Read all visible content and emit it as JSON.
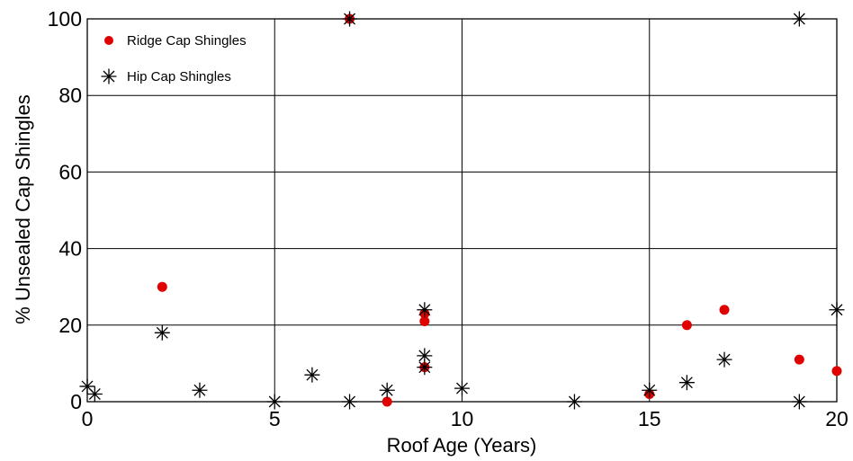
{
  "chart_data": {
    "type": "scatter",
    "xlabel": "Roof Age (Years)",
    "ylabel": "% Unsealed Cap Shingles",
    "xlim": [
      0,
      20
    ],
    "ylim": [
      0,
      100
    ],
    "xticks": [
      0,
      5,
      10,
      15,
      20
    ],
    "yticks": [
      0,
      20,
      40,
      60,
      80,
      100
    ],
    "grid": true,
    "legend_position": "top-left",
    "series": [
      {
        "name": "Ridge Cap Shingles",
        "marker": "circle",
        "color": "#e00000",
        "points": [
          {
            "x": 2,
            "y": 30
          },
          {
            "x": 7,
            "y": 100
          },
          {
            "x": 8,
            "y": 0
          },
          {
            "x": 9,
            "y": 23
          },
          {
            "x": 9,
            "y": 21
          },
          {
            "x": 9,
            "y": 9
          },
          {
            "x": 15,
            "y": 2
          },
          {
            "x": 16,
            "y": 20
          },
          {
            "x": 17,
            "y": 24
          },
          {
            "x": 19,
            "y": 11
          },
          {
            "x": 20,
            "y": 8
          }
        ]
      },
      {
        "name": "Hip Cap Shingles",
        "marker": "asterisk",
        "color": "#000000",
        "points": [
          {
            "x": 0,
            "y": 4
          },
          {
            "x": 0.2,
            "y": 2
          },
          {
            "x": 2,
            "y": 18
          },
          {
            "x": 3,
            "y": 3
          },
          {
            "x": 5,
            "y": 0
          },
          {
            "x": 6,
            "y": 7
          },
          {
            "x": 7,
            "y": 0
          },
          {
            "x": 7,
            "y": 100
          },
          {
            "x": 8,
            "y": 3
          },
          {
            "x": 9,
            "y": 24
          },
          {
            "x": 9,
            "y": 12
          },
          {
            "x": 9,
            "y": 9
          },
          {
            "x": 10,
            "y": 3.5
          },
          {
            "x": 13,
            "y": 0
          },
          {
            "x": 15,
            "y": 3
          },
          {
            "x": 16,
            "y": 5
          },
          {
            "x": 17,
            "y": 11
          },
          {
            "x": 19,
            "y": 100
          },
          {
            "x": 19,
            "y": 0
          },
          {
            "x": 20,
            "y": 24
          }
        ]
      }
    ]
  }
}
